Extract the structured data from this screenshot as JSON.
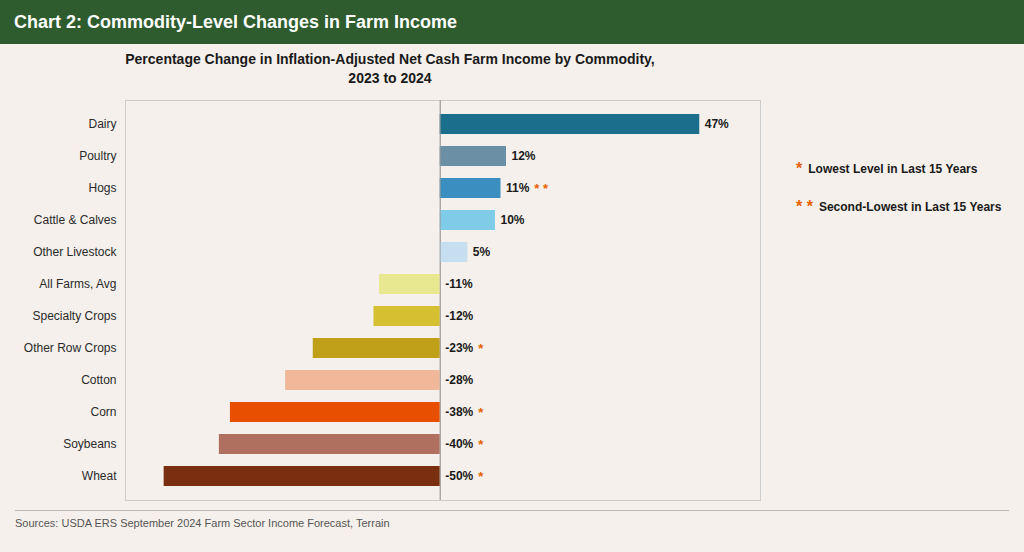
{
  "chart_data": {
    "type": "bar",
    "orientation": "horizontal",
    "title": "Chart 2: Commodity-Level Changes in Farm Income",
    "subtitle": "Percentage Change in Inflation-Adjusted Net Cash Farm Income by Commodity,\n2023 to 2024",
    "source": "Sources: USDA ERS September 2024 Farm Sector Income Forecast, Terrain",
    "categories": [
      "Dairy",
      "Poultry",
      "Hogs",
      "Cattle & Calves",
      "Other Livestock",
      "All Farms, Avg",
      "Specialty Crops",
      "Other Row Crops",
      "Cotton",
      "Corn",
      "Soybeans",
      "Wheat"
    ],
    "values": [
      47,
      12,
      11,
      10,
      5,
      -11,
      -12,
      -23,
      -28,
      -38,
      -40,
      -50
    ],
    "value_labels": [
      "47%",
      "12%",
      "11%",
      "10%",
      "5%",
      "-11%",
      "-12%",
      "-23%",
      "-28%",
      "-38%",
      "-40%",
      "-50%"
    ],
    "data_labels": true,
    "colors": [
      "#1b6e8c",
      "#6b8fa5",
      "#3a8ec0",
      "#7ecce8",
      "#c5dff0",
      "#e8e890",
      "#d4c030",
      "#c0a018",
      "#f0b898",
      "#e85000",
      "#b07060",
      "#7a3010"
    ],
    "annotations": [
      {
        "category": "Hogs",
        "text": "* *"
      },
      {
        "category": "Other Row Crops",
        "text": "*"
      },
      {
        "category": "Corn",
        "text": "*"
      },
      {
        "category": "Soybeans",
        "text": "*"
      },
      {
        "category": "Wheat",
        "text": "*"
      }
    ],
    "annotation_color": "#e86000",
    "legend_entries": [
      {
        "symbol": "*",
        "label": "Lowest Level in Last 15 Years"
      },
      {
        "symbol": "* *",
        "label": "Second-Lowest in Last 15 Years"
      }
    ],
    "xlim": [
      -57,
      58
    ],
    "xticks": [],
    "tick_labels": "y",
    "grid": false
  }
}
